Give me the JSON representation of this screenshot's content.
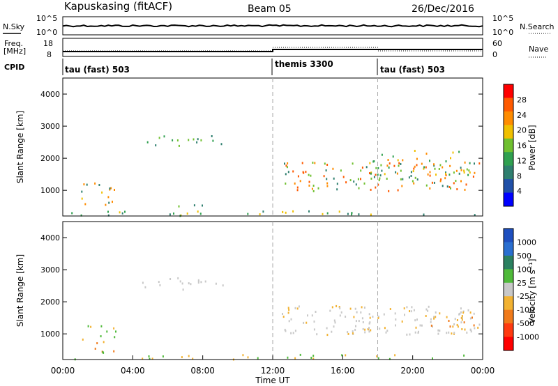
{
  "header": {
    "station": "Kapuskasing (fitACF)",
    "beam": "Beam 05",
    "date": "26/Dec/2016"
  },
  "noise_panel": {
    "left_label": "N.Sky",
    "right_label": "N.Search",
    "left_ticks": [
      "10^5",
      "10^0"
    ],
    "right_ticks": [
      "10^5",
      "10^0"
    ]
  },
  "freq_panel": {
    "left_label_1": "Freq.",
    "left_label_2": "[MHz]",
    "right_label": "Nave",
    "left_ticks": [
      "18",
      "8"
    ],
    "right_ticks": [
      "60",
      "0"
    ]
  },
  "cpid_panel": {
    "label": "CPID",
    "modes": [
      {
        "name": "tau (fast) 503",
        "start_hour": 0
      },
      {
        "name": "themis 3300",
        "start_hour": 12
      },
      {
        "name": "tau (fast) 503",
        "start_hour": 18
      }
    ]
  },
  "power_panel": {
    "ylabel": "Slant Range [km]",
    "cbar_label": "Power [dB]",
    "cbar_ticks": [
      "28",
      "24",
      "20",
      "16",
      "12",
      "8",
      "4"
    ],
    "cbar_colors": [
      "#ff0000",
      "#ff5a00",
      "#ff8c00",
      "#f0c000",
      "#70c030",
      "#30a050",
      "#2f7f6f",
      "#2050a8",
      "#0000ff"
    ]
  },
  "velocity_panel": {
    "ylabel": "Slant Range [km]",
    "cbar_label": "Velocity [m s⁻¹]",
    "cbar_ticks": [
      "1000",
      "500",
      "100",
      "25",
      "-25",
      "-100",
      "-500",
      "-1000"
    ],
    "cbar_colors": [
      "#1e4fbf",
      "#2a6fd0",
      "#2b8060",
      "#4fba3a",
      "#c8c8c8",
      "#f2b232",
      "#f07a1a",
      "#ff3a10",
      "#ff0000"
    ],
    "ground_scatter_color": "#c8c8c8"
  },
  "xaxis": {
    "label": "Time UT",
    "ticks": [
      "00:00",
      "04:00",
      "08:00",
      "12:00",
      "16:00",
      "20:00",
      "00:00"
    ]
  },
  "chart_data": {
    "type": "heatmap",
    "x_range_hours": [
      0,
      24
    ],
    "y_range_km": [
      200,
      4500
    ],
    "y_ticks": [
      1000,
      2000,
      3000,
      4000
    ],
    "mode_change_hours": [
      12,
      18
    ],
    "power_regions": [
      {
        "t0": 0.3,
        "t1": 23.9,
        "r0": 230,
        "r1": 380,
        "density": 0.35,
        "vals": [
          8,
          12,
          20
        ]
      },
      {
        "t0": 1.0,
        "t1": 3.0,
        "r0": 400,
        "r1": 1300,
        "density": 0.35,
        "vals": [
          8,
          20,
          26
        ]
      },
      {
        "t0": 4.5,
        "t1": 9.5,
        "r0": 2400,
        "r1": 2800,
        "density": 0.3,
        "vals": [
          8,
          12,
          16
        ]
      },
      {
        "t0": 6.5,
        "t1": 8.5,
        "r0": 500,
        "r1": 700,
        "density": 0.3,
        "vals": [
          8,
          16
        ]
      },
      {
        "t0": 12.5,
        "t1": 23.9,
        "r0": 1000,
        "r1": 1900,
        "density": 0.5,
        "vals": [
          8,
          16,
          24,
          28
        ]
      },
      {
        "t0": 17.5,
        "t1": 23.9,
        "r0": 1500,
        "r1": 2300,
        "density": 0.3,
        "vals": [
          12,
          20,
          24
        ]
      }
    ],
    "velocity_regions": [
      {
        "t0": 0.3,
        "t1": 23.9,
        "r0": 230,
        "r1": 380,
        "density": 0.3,
        "vals": [
          -100,
          25,
          100
        ]
      },
      {
        "t0": 1.0,
        "t1": 3.0,
        "r0": 400,
        "r1": 1300,
        "density": 0.35,
        "vals": [
          -100,
          -500,
          100
        ]
      },
      {
        "t0": 4.5,
        "t1": 9.5,
        "r0": 2400,
        "r1": 2800,
        "density": 0.35,
        "vals": [
          0
        ]
      },
      {
        "t0": 12.5,
        "t1": 23.9,
        "r0": 1000,
        "r1": 1900,
        "density": 0.55,
        "vals": [
          0,
          0,
          0,
          -100
        ]
      },
      {
        "t0": 21.0,
        "t1": 23.5,
        "r0": 1100,
        "r1": 1700,
        "density": 0.35,
        "vals": [
          -500,
          -100
        ]
      }
    ]
  }
}
